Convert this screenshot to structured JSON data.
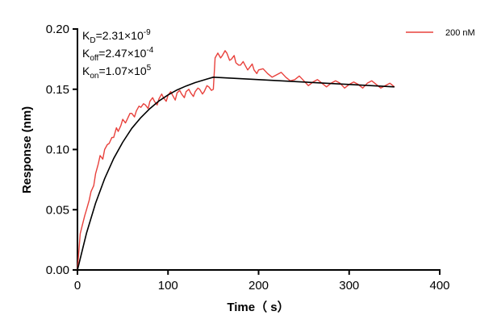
{
  "chart_data": {
    "type": "line",
    "xlabel": "Time（ s）",
    "ylabel": "Response (nm)",
    "xlim": [
      0,
      400
    ],
    "ylim": [
      0,
      0.2
    ],
    "xticks": [
      "0",
      "100",
      "200",
      "300",
      "400"
    ],
    "yticks": [
      "0.00",
      "0.05",
      "0.10",
      "0.15",
      "0.20"
    ],
    "grid": false,
    "legend": "top-right",
    "annotations": {
      "kd": {
        "k": "K",
        "sub": "D",
        "text": "=2.31×10",
        "exp": "-9"
      },
      "koff": {
        "k": "K",
        "sub": "off",
        "text": "=2.47×10",
        "exp": "-4"
      },
      "kon": {
        "k": "K",
        "sub": "on",
        "text": "=1.07×10",
        "exp": "5"
      }
    },
    "series": [
      {
        "name": "200 nM",
        "color": "#e8413c",
        "x": [
          0,
          3,
          5,
          8,
          10,
          13,
          15,
          18,
          20,
          23,
          25,
          28,
          30,
          33,
          35,
          38,
          40,
          43,
          45,
          48,
          50,
          53,
          55,
          58,
          60,
          63,
          65,
          68,
          70,
          73,
          75,
          78,
          80,
          83,
          85,
          88,
          90,
          93,
          95,
          98,
          100,
          103,
          105,
          108,
          110,
          113,
          115,
          118,
          120,
          123,
          125,
          128,
          130,
          133,
          135,
          138,
          140,
          143,
          145,
          148,
          150,
          152,
          155,
          158,
          160,
          163,
          165,
          168,
          170,
          173,
          175,
          178,
          180,
          183,
          185,
          188,
          190,
          193,
          195,
          198,
          200,
          205,
          210,
          215,
          220,
          225,
          230,
          235,
          240,
          245,
          250,
          255,
          260,
          265,
          270,
          275,
          280,
          285,
          290,
          295,
          300,
          305,
          310,
          315,
          320,
          325,
          330,
          335,
          340,
          345,
          350
        ],
        "y": [
          0.0,
          0.03,
          0.036,
          0.045,
          0.05,
          0.058,
          0.065,
          0.07,
          0.08,
          0.088,
          0.095,
          0.092,
          0.1,
          0.104,
          0.105,
          0.11,
          0.11,
          0.118,
          0.115,
          0.12,
          0.125,
          0.122,
          0.125,
          0.13,
          0.13,
          0.127,
          0.132,
          0.136,
          0.135,
          0.138,
          0.137,
          0.134,
          0.14,
          0.143,
          0.14,
          0.137,
          0.142,
          0.146,
          0.143,
          0.14,
          0.145,
          0.148,
          0.145,
          0.141,
          0.147,
          0.149,
          0.146,
          0.143,
          0.148,
          0.15,
          0.147,
          0.144,
          0.148,
          0.151,
          0.15,
          0.146,
          0.148,
          0.153,
          0.152,
          0.149,
          0.15,
          0.176,
          0.18,
          0.176,
          0.178,
          0.182,
          0.18,
          0.174,
          0.175,
          0.178,
          0.172,
          0.17,
          0.17,
          0.173,
          0.17,
          0.166,
          0.168,
          0.171,
          0.166,
          0.163,
          0.166,
          0.167,
          0.163,
          0.16,
          0.162,
          0.164,
          0.16,
          0.157,
          0.158,
          0.161,
          0.157,
          0.153,
          0.156,
          0.158,
          0.155,
          0.152,
          0.155,
          0.157,
          0.155,
          0.151,
          0.154,
          0.156,
          0.154,
          0.151,
          0.155,
          0.157,
          0.154,
          0.151,
          0.153,
          0.155,
          0.152
        ]
      },
      {
        "color": "#000000",
        "x": [
          0,
          10,
          20,
          30,
          40,
          50,
          60,
          70,
          80,
          90,
          100,
          110,
          120,
          130,
          140,
          150,
          200,
          250,
          300,
          350
        ],
        "y": [
          0,
          0.0305,
          0.0555,
          0.0758,
          0.0925,
          0.106,
          0.1175,
          0.1265,
          0.134,
          0.1403,
          0.1453,
          0.1494,
          0.1527,
          0.1555,
          0.1578,
          0.16,
          0.158,
          0.156,
          0.154,
          0.152
        ]
      }
    ]
  }
}
